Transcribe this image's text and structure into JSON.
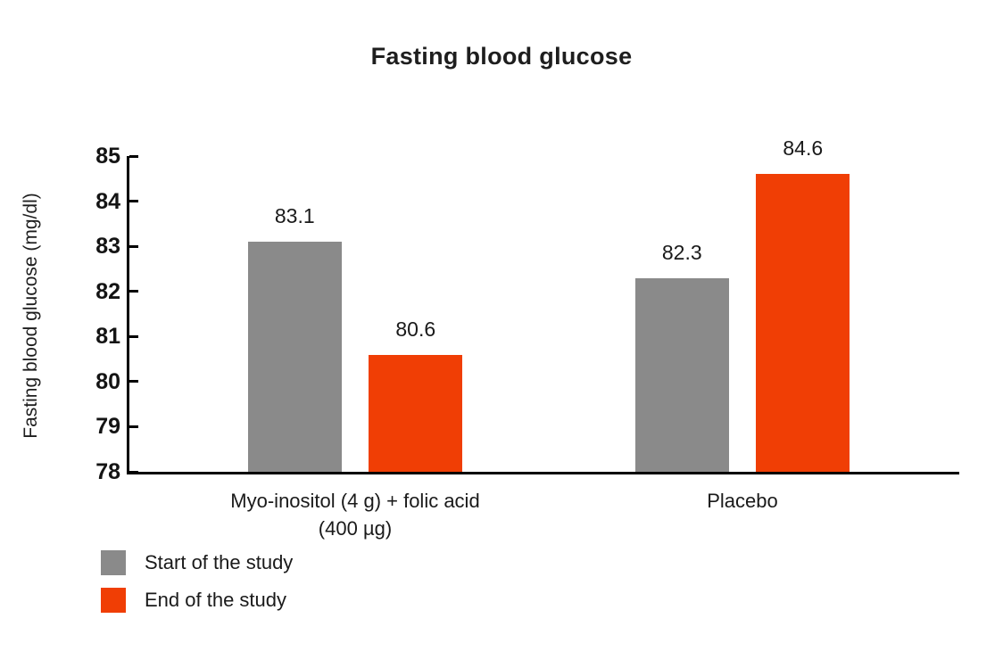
{
  "chart_data": {
    "type": "bar",
    "title": "Fasting blood glucose",
    "ylabel": "Fasting blood glucose (mg/dl)",
    "xlabel": "",
    "categories": [
      "Myo-inositol (4 g) + folic acid (400 µg)",
      "Placebo"
    ],
    "series": [
      {
        "name": "Start of the study",
        "color": "#8a8a8a",
        "values": [
          83.1,
          82.3
        ]
      },
      {
        "name": "End of the study",
        "color": "#f03e05",
        "values": [
          80.6,
          84.6
        ]
      }
    ],
    "value_labels": [
      [
        "83.1",
        "82.3"
      ],
      [
        "80.6",
        "84.6"
      ]
    ],
    "ylim": [
      78,
      85
    ],
    "yticks": [
      78,
      79,
      80,
      81,
      82,
      83,
      84,
      85
    ],
    "grid": false,
    "legend_position": "bottom-left"
  },
  "colors": {
    "background": "#ffffff",
    "axis": "#000000",
    "text": "#1a1a1a"
  }
}
